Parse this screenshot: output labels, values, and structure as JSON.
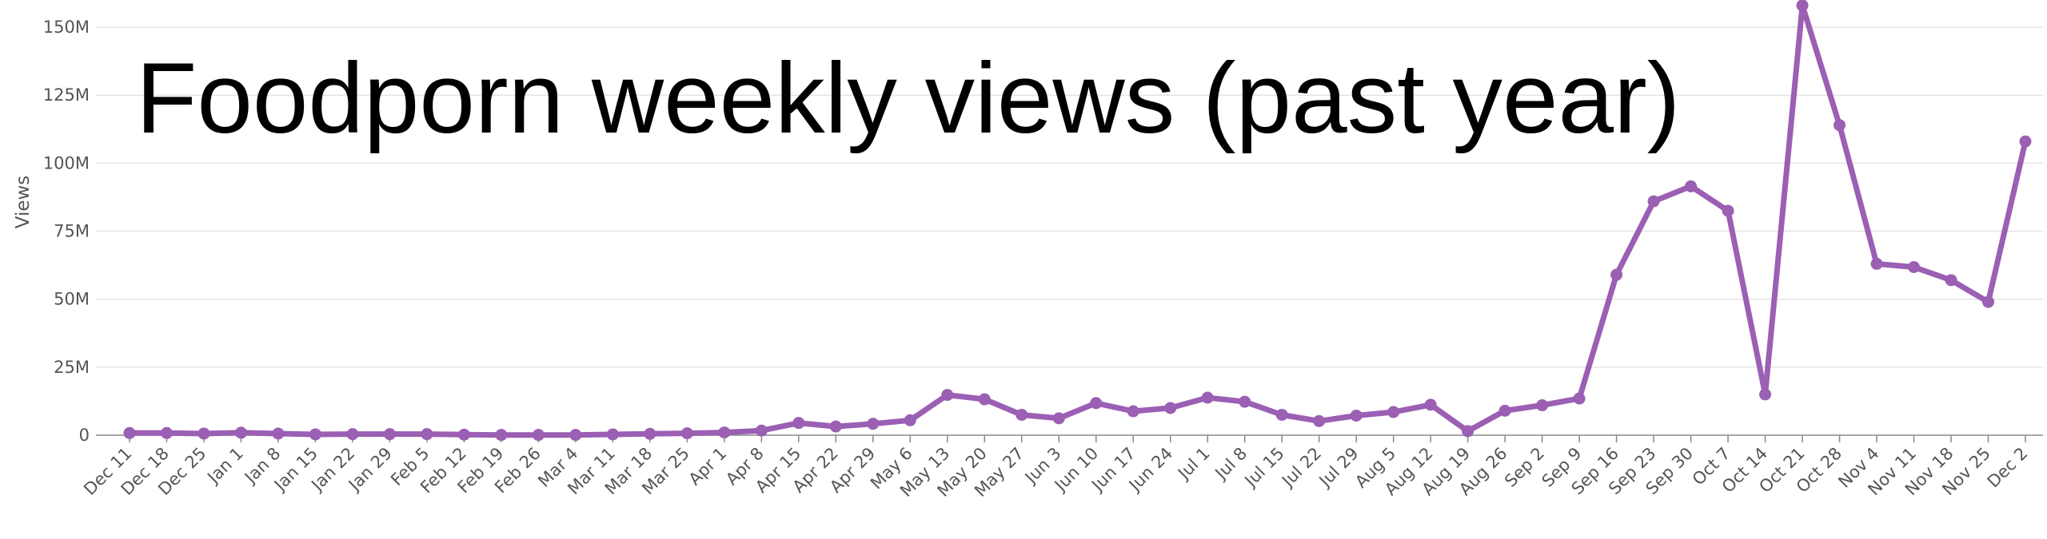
{
  "chart_data": {
    "type": "line",
    "title": "Foodporn weekly views (past year)",
    "xlabel": "",
    "ylabel": "Views",
    "ylim": [
      0,
      160000000
    ],
    "y_ticks": [
      0,
      25000000,
      50000000,
      75000000,
      100000000,
      125000000,
      150000000
    ],
    "y_tick_labels": [
      "0",
      "25M",
      "50M",
      "75M",
      "100M",
      "125M",
      "150M"
    ],
    "grid": true,
    "line_color": "#9b5fb3",
    "categories": [
      "Dec 11",
      "Dec 18",
      "Dec 25",
      "Jan 1",
      "Jan 8",
      "Jan 15",
      "Jan 22",
      "Jan 29",
      "Feb 5",
      "Feb 12",
      "Feb 19",
      "Feb 26",
      "Mar 4",
      "Mar 11",
      "Mar 18",
      "Mar 25",
      "Apr 1",
      "Apr 8",
      "Apr 15",
      "Apr 22",
      "Apr 29",
      "May 6",
      "May 13",
      "May 20",
      "May 27",
      "Jun 3",
      "Jun 10",
      "Jun 17",
      "Jun 24",
      "Jul 1",
      "Jul 8",
      "Jul 15",
      "Jul 22",
      "Jul 29",
      "Aug 5",
      "Aug 12",
      "Aug 19",
      "Aug 26",
      "Sep 2",
      "Sep 9",
      "Sep 16",
      "Sep 23",
      "Sep 30",
      "Oct 7",
      "Oct 14",
      "Oct 21",
      "Oct 28",
      "Nov 4",
      "Nov 11",
      "Nov 18",
      "Nov 25",
      "Dec 2"
    ],
    "values": [
      800000,
      800000,
      600000,
      900000,
      600000,
      300000,
      400000,
      400000,
      400000,
      200000,
      100000,
      100000,
      100000,
      300000,
      500000,
      700000,
      1000000,
      1700000,
      4500000,
      3200000,
      4200000,
      5500000,
      14800000,
      13200000,
      7500000,
      6200000,
      11800000,
      8800000,
      10000000,
      13800000,
      12300000,
      7500000,
      5200000,
      7200000,
      8500000,
      11200000,
      1500000,
      9000000,
      11000000,
      13500000,
      59000000,
      86000000,
      91500000,
      82500000,
      15000000,
      158000000,
      114000000,
      63000000,
      61800000,
      57000000,
      49000000,
      108000000
    ]
  }
}
